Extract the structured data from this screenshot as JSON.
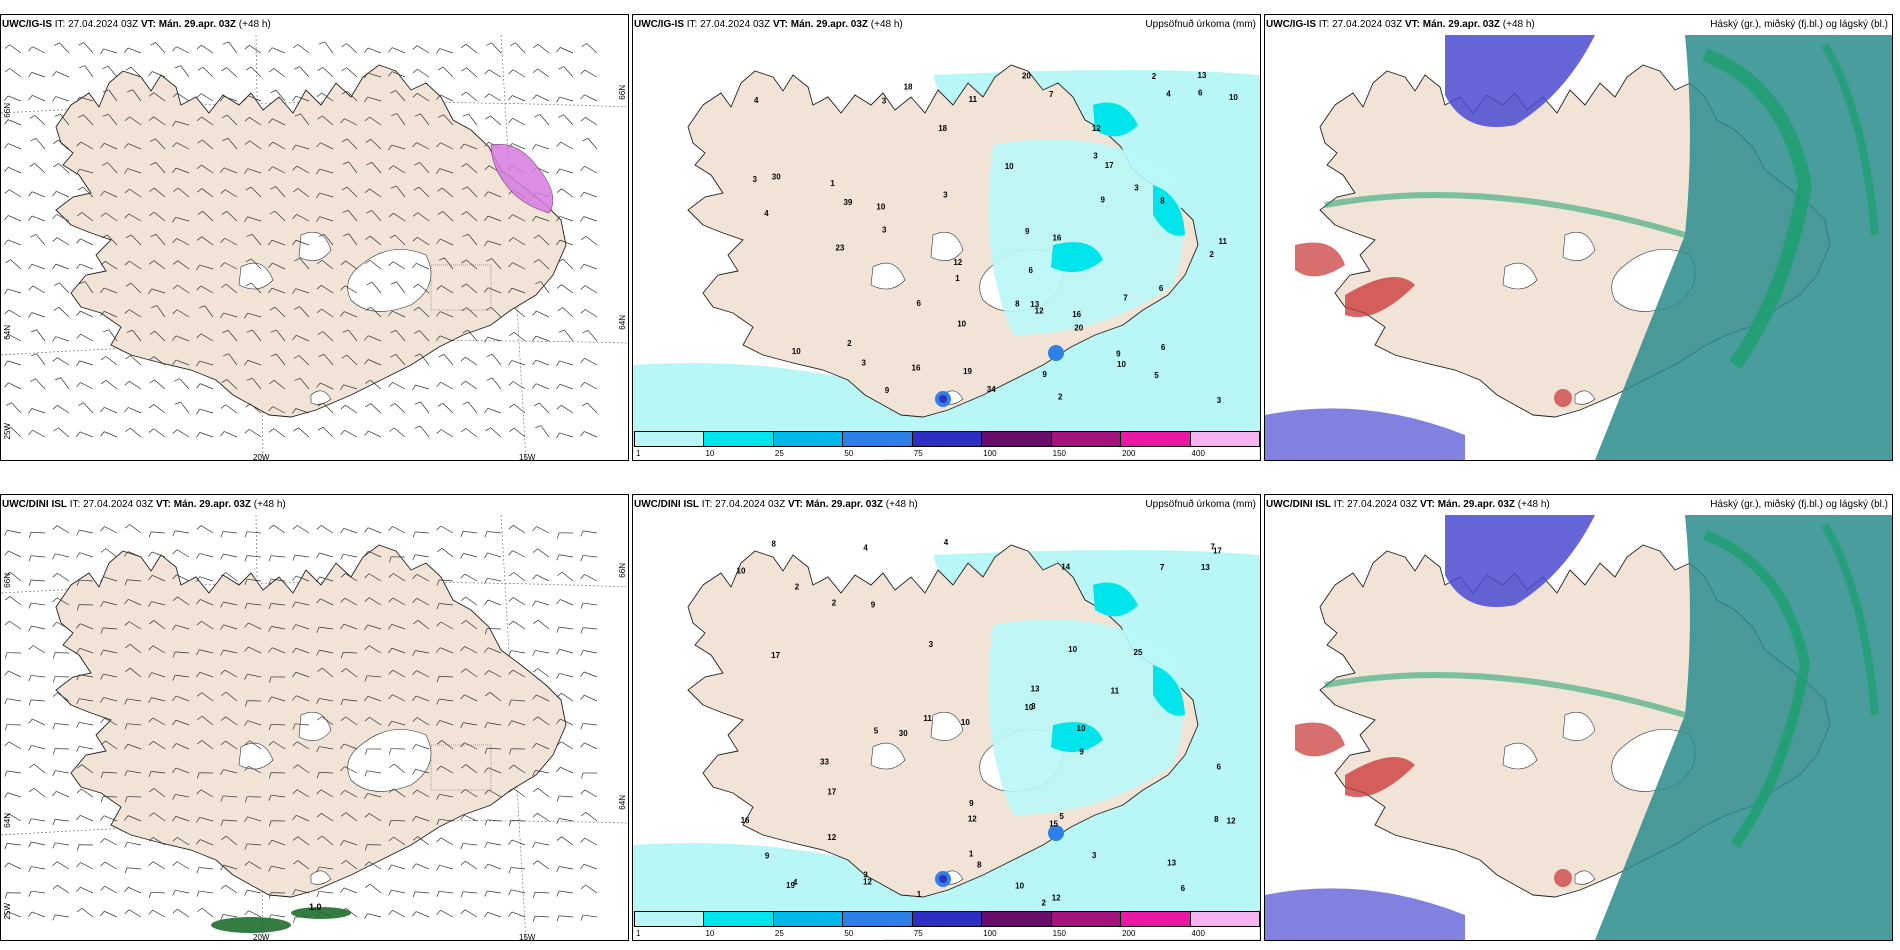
{
  "panels": [
    {
      "model": "UWC/IG-IS",
      "it_label": "IT:",
      "it": "27.04.2024 03Z",
      "vt_label": "VT:",
      "vt": "Mán. 29.apr. 03Z",
      "lead": "(+48 h)",
      "right": ""
    },
    {
      "model": "UWC/IG-IS",
      "it_label": "IT:",
      "it": "27.04.2024 03Z",
      "vt_label": "VT:",
      "vt": "Mán. 29.apr. 03Z",
      "lead": "(+48 h)",
      "right": "Uppsöfnuð úrkoma (mm)"
    },
    {
      "model": "UWC/IG-IS",
      "it_label": "IT:",
      "it": "27.04.2024 03Z",
      "vt_label": "VT:",
      "vt": "Mán. 29.apr. 03Z",
      "lead": "(+48 h)",
      "right": "Háský (gr.), miðský (fj.bl.) og lágský (bl.)"
    },
    {
      "model": "UWC/DINI ISL",
      "it_label": "IT:",
      "it": "27.04.2024 03Z",
      "vt_label": "VT:",
      "vt": "Mán. 29.apr. 03Z",
      "lead": "(+48 h)",
      "right": ""
    },
    {
      "model": "UWC/DINI ISL",
      "it_label": "IT:",
      "it": "27.04.2024 03Z",
      "vt_label": "VT:",
      "vt": "Mán. 29.apr. 03Z",
      "lead": "(+48 h)",
      "right": "Uppsöfnuð úrkoma (mm)"
    },
    {
      "model": "UWC/DINI ISL",
      "it_label": "IT:",
      "it": "27.04.2024 03Z",
      "vt_label": "VT:",
      "vt": "Mán. 29.apr. 03Z",
      "lead": "(+48 h)",
      "right": "Háský (gr.), miðský (fj.bl.) og lágský (bl.)"
    }
  ],
  "gridlabels": {
    "lat66": "66N",
    "lat64": "64N",
    "lat63": "63N",
    "lon20": "20W",
    "lon15": "15W",
    "lon25": "25W"
  },
  "colorbar": {
    "levels": [
      "1",
      "10",
      "25",
      "50",
      "75",
      "100",
      "150",
      "200",
      "400"
    ],
    "colors": [
      "#b9f7f7",
      "#00e5ec",
      "#00b8ea",
      "#2f7fe8",
      "#2d2fc0",
      "#6a0d6a",
      "#a4127d",
      "#ea18a4",
      "#f5b4f0"
    ]
  },
  "precip_ig": [
    "2",
    "3",
    "2",
    "1",
    "3",
    "9",
    "2",
    "3",
    "1",
    "3",
    "10",
    "3",
    "12",
    "13",
    "9",
    "2",
    "4",
    "4",
    "7",
    "8",
    "9",
    "12",
    "9",
    "10",
    "16",
    "17",
    "23",
    "39",
    "34",
    "18",
    "20",
    "13",
    "12",
    "16",
    "18",
    "19",
    "20",
    "30",
    "11",
    "16",
    "11",
    "9",
    "10",
    "6",
    "7",
    "6",
    "8",
    "10",
    "6",
    "6",
    "6",
    "10",
    "10",
    "3",
    "4",
    "3",
    "5",
    "3"
  ],
  "precip_dini": [
    "1",
    "2",
    "3",
    "3",
    "4",
    "2",
    "5",
    "6",
    "4",
    "3",
    "7",
    "8",
    "11",
    "12",
    "14",
    "10",
    "17",
    "12",
    "30",
    "10",
    "15",
    "17",
    "13",
    "19",
    "25",
    "33",
    "16",
    "17",
    "8",
    "9",
    "10",
    "12",
    "9",
    "13",
    "12",
    "10",
    "8",
    "9",
    "10",
    "13",
    "3",
    "11",
    "12",
    "4",
    "9",
    "5",
    "6",
    "10",
    "2",
    "1",
    "7"
  ],
  "cloud_colors": {
    "high": "#1aa06e",
    "mid": "#4b4bd2",
    "low": "#2a8c8c",
    "land": "#f1e4d6",
    "sea": "#ffffff",
    "red": "#c83232"
  },
  "wind_label": "1.0"
}
